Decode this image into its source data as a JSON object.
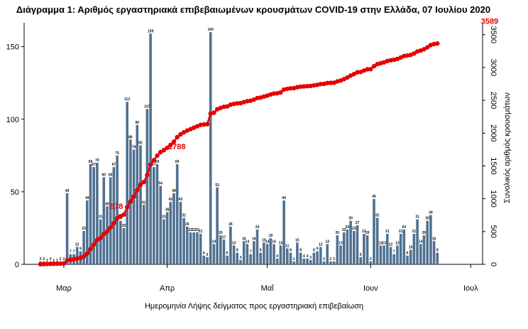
{
  "chart_data": {
    "type": "bar+line",
    "title": "Διάγραμμα 1: Αριθμός εργαστηριακά επιβεβαιωμένων κρουσμάτων COVID-19 στην Ελλάδα, 07 Ιουλίου 2020",
    "xlabel": "Ημερομηνία Λήψης δείγματος προς εργαστηριακή επιβεβαίωση",
    "ylabel": "",
    "y2label": "Συνολικός αριθμός κρουσμάτων",
    "ylim": [
      0,
      165
    ],
    "y2lim": [
      0,
      3650
    ],
    "yticks": [
      0,
      50,
      100,
      150
    ],
    "y2ticks": [
      "0",
      "500",
      "1000",
      "1500",
      "2000",
      "2500",
      "3000",
      "3500"
    ],
    "month_ticks": [
      {
        "label": "Μαρ",
        "day": 0
      },
      {
        "label": "Απρ",
        "day": 31
      },
      {
        "label": "Μαΐ",
        "day": 61
      },
      {
        "label": "Ιουν",
        "day": 92
      },
      {
        "label": "Ιουλ",
        "day": 122
      }
    ],
    "grid": false,
    "bar_color": "#4f7191",
    "line_color": "#e60000",
    "start_day_index": -7,
    "series": [
      {
        "kind": "bar",
        "values": [
          2,
          2,
          1,
          2,
          1,
          1,
          2,
          2,
          49,
          7,
          7,
          12,
          9,
          23,
          44,
          69,
          67,
          70,
          31,
          60,
          40,
          60,
          67,
          75,
          30,
          25,
          112,
          86,
          79,
          96,
          82,
          41,
          107,
          159,
          67,
          69,
          54,
          31,
          36,
          43,
          49,
          69,
          43,
          32,
          26,
          22,
          22,
          22,
          21,
          6,
          5,
          160,
          14,
          53,
          20,
          17,
          6,
          26,
          13,
          8,
          3,
          16,
          14,
          7,
          16,
          24,
          8,
          15,
          14,
          18,
          14,
          4,
          13,
          44,
          11,
          8,
          2,
          15,
          8,
          4,
          4,
          3,
          8,
          9,
          12,
          2,
          14,
          2,
          2,
          20,
          13,
          22,
          24,
          30,
          23,
          27,
          5,
          21,
          20,
          2,
          45,
          32,
          13,
          13,
          21,
          12,
          7,
          13,
          21,
          24,
          6,
          10,
          21,
          31,
          14,
          20,
          30,
          34,
          16,
          8
        ],
        "labels": [
          "2",
          "2",
          "1",
          "2",
          "1",
          "1",
          "2",
          "2",
          "49",
          "7",
          "7",
          "12",
          "9",
          "23",
          "44",
          "69",
          "67",
          "70",
          "31",
          "60",
          "40",
          "60",
          "67",
          "75",
          "30",
          "25",
          "112",
          "86",
          "79",
          "96",
          "82",
          "41",
          "107",
          "159",
          "67",
          "69",
          "54",
          "31",
          "36",
          "43",
          "49",
          "69",
          "43",
          "32",
          "26",
          "22",
          "22",
          "22",
          "21",
          "6",
          "5",
          "160",
          "14",
          "53",
          "20",
          "17",
          "6",
          "26",
          "13",
          "8",
          "3",
          "16",
          "14",
          "7",
          "16",
          "24",
          "8",
          "15",
          "14",
          "18",
          "14",
          "4",
          "13",
          "44",
          "11",
          "8",
          "2",
          "15",
          "8",
          "4",
          "4",
          "3",
          "8",
          "9",
          "12",
          "2",
          "14",
          "2",
          "2",
          "20",
          "13",
          "22",
          "24",
          "30",
          "23",
          "27",
          "5",
          "21",
          "20",
          "2",
          "45",
          "32",
          "13",
          "13",
          "21",
          "12",
          "7",
          "13",
          "21",
          "24",
          "6",
          "10",
          "21",
          "31",
          "14",
          "20",
          "30",
          "34",
          "16",
          "8"
        ]
      },
      {
        "kind": "line",
        "name": "",
        "highlighted": [
          {
            "label": "878",
            "value": 878,
            "day": 19
          },
          {
            "label": "1788",
            "value": 1788,
            "day": 33
          },
          {
            "label": "3589",
            "value": 3589,
            "day": 129
          }
        ]
      }
    ]
  }
}
